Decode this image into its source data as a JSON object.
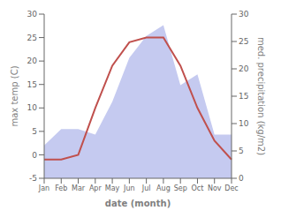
{
  "chart_data": {
    "type": "combo",
    "xlabel": "date (month)",
    "ylabel": "max temp (C)",
    "y2label": "med. precipitation (kg/m2)",
    "categories": [
      "Jan",
      "Feb",
      "Mar",
      "Apr",
      "May",
      "Jun",
      "Jul",
      "Aug",
      "Sep",
      "Oct",
      "Nov",
      "Dec"
    ],
    "series": [
      {
        "type": "area",
        "color": "#c5caf0",
        "axis": "y2",
        "values": [
          6,
          9,
          9,
          8,
          14,
          22,
          26,
          28,
          17,
          19,
          8,
          8
        ]
      },
      {
        "type": "line",
        "color": "#c0504d",
        "axis": "y",
        "values": [
          -1,
          -1,
          0,
          10,
          19,
          24,
          25,
          25,
          19,
          10,
          3,
          -1
        ]
      }
    ],
    "ylim": [
      -5,
      30
    ],
    "yticks": [
      -5,
      0,
      5,
      10,
      15,
      20,
      25,
      30
    ],
    "y2lim": [
      0,
      30
    ],
    "y2ticks": [
      0,
      5,
      10,
      15,
      20,
      25,
      30
    ],
    "grid": false
  }
}
